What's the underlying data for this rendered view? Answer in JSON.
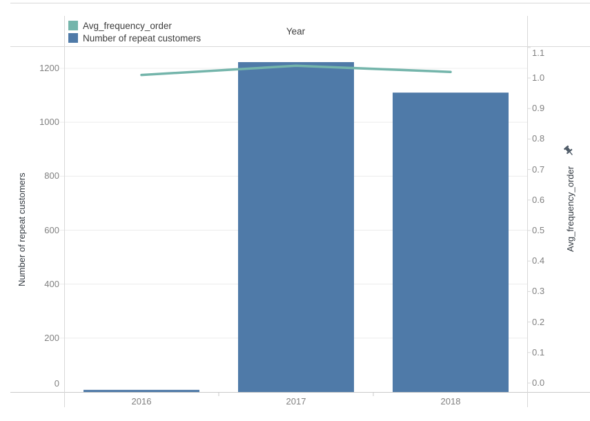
{
  "chart_data": {
    "type": "combo",
    "title": "Year",
    "categories": [
      "2016",
      "2017",
      "2018"
    ],
    "series": [
      {
        "name": "Avg_frequency_order",
        "type": "line",
        "axis": "right",
        "color": "#74b5ab",
        "values": [
          1.01,
          1.04,
          1.02
        ]
      },
      {
        "name": "Number of repeat customers",
        "type": "bar",
        "axis": "left",
        "color": "#4f7aa8",
        "values": [
          8,
          1223,
          1110
        ]
      }
    ],
    "left_axis": {
      "label": "Number of repeat customers",
      "ticks": [
        0,
        200,
        400,
        600,
        800,
        1000,
        1200
      ],
      "range": [
        0,
        1282
      ],
      "grid": true
    },
    "right_axis": {
      "label": "Avg_frequency_order",
      "tick_labels": [
        "0.0",
        "0.1",
        "0.2",
        "0.3",
        "0.4",
        "0.5",
        "0.6",
        "0.7",
        "0.8",
        "0.9",
        "1.0",
        "1.1"
      ],
      "range": [
        -0.03,
        1.13
      ],
      "pinned": true
    },
    "legend": {
      "position": "top-left",
      "entries": [
        "Avg_frequency_order",
        "Number of repeat customers"
      ]
    }
  },
  "colors": {
    "bar": "#4f7aa8",
    "line": "#74b5ab",
    "gridline": "#ececec",
    "axis_line": "#d8d8d8",
    "axis_line_dark": "#c9c9c9",
    "tick_text": "#7f7f7f",
    "title_text": "#3c3c3c",
    "pin": "#4d5966"
  }
}
